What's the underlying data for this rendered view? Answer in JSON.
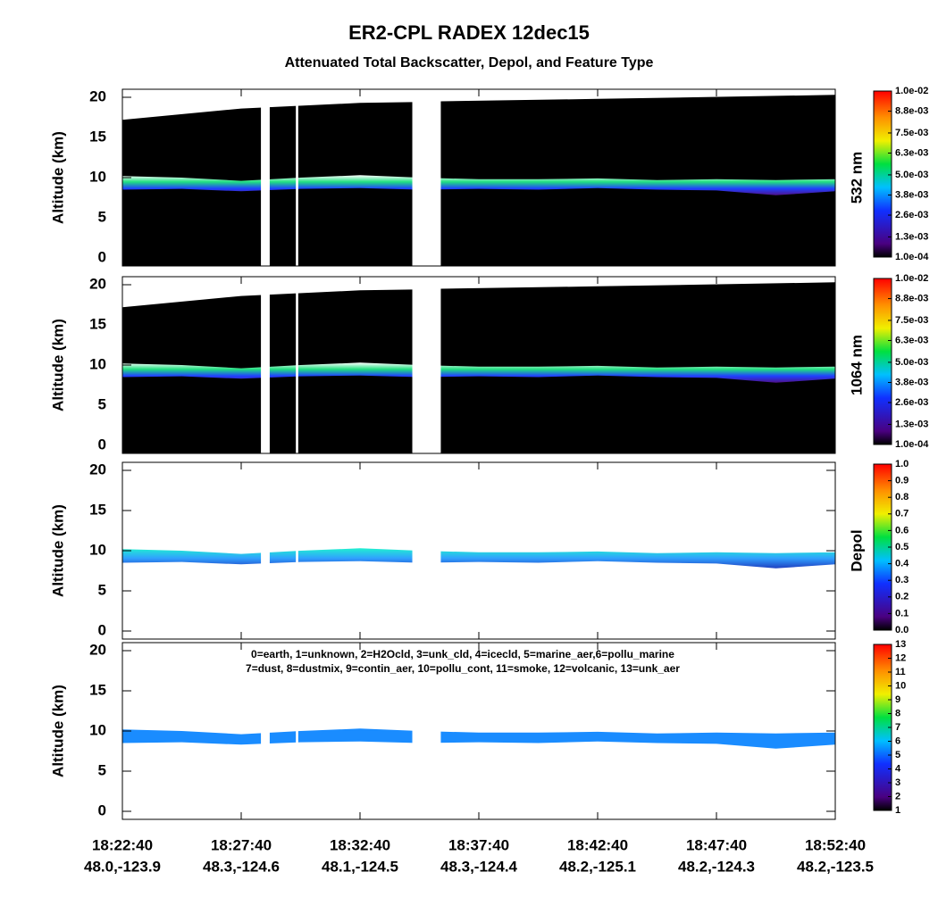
{
  "title": "ER2-CPL RADEX 12dec15",
  "subtitle": "Attenuated Total Backscatter, Depol, and Feature Type",
  "x_axis": {
    "xlim": [
      0,
      30
    ],
    "xticks": [
      {
        "value": 0,
        "label": "18:22:40"
      },
      {
        "value": 5,
        "label": "18:27:40"
      },
      {
        "value": 10,
        "label": "18:32:40"
      },
      {
        "value": 15,
        "label": "18:37:40"
      },
      {
        "value": 20,
        "label": "18:42:40"
      },
      {
        "value": 25,
        "label": "18:47:40"
      },
      {
        "value": 30,
        "label": "18:52:40"
      }
    ],
    "locations": [
      "48.0,-123.9",
      "48.3,-124.6",
      "48.1,-124.5",
      "48.3,-124.4",
      "48.2,-125.1",
      "48.2,-124.3",
      "48.2,-123.5"
    ]
  },
  "profile": {
    "x": [
      0,
      2.5,
      5,
      7.5,
      10,
      12.5,
      15,
      17.5,
      20,
      22.5,
      25,
      27.5,
      30
    ],
    "cloud_top": [
      10.2,
      10,
      9.6,
      10,
      10.3,
      10,
      9.8,
      9.8,
      9.9,
      9.7,
      9.8,
      9.7,
      9.8
    ],
    "cloud_base": [
      8.5,
      8.6,
      8.3,
      8.6,
      8.7,
      8.5,
      8.6,
      8.5,
      8.7,
      8.5,
      8.4,
      7.8,
      8.3
    ],
    "x_alt": [
      0,
      5,
      10,
      12.2,
      13.4,
      20,
      30
    ],
    "aircraft_alt": [
      17.2,
      18.6,
      19.3,
      19.4,
      19.5,
      19.8,
      20.3
    ],
    "gaps": [
      [
        5.83,
        6.2
      ],
      [
        7.3,
        7.4
      ],
      [
        12.2,
        13.4
      ]
    ]
  },
  "chart_data": [
    {
      "type": "curtain",
      "ylabel": "Altitude (km)",
      "side_label": "532 nm",
      "ylim": [
        -1,
        21
      ],
      "yticks": [
        0,
        5,
        10,
        15,
        20
      ],
      "background": "#000000",
      "band_colors": [
        "#ffffff",
        "#20e080",
        "#2040ff",
        "#50108a"
      ],
      "clim": [
        0.0001,
        0.01
      ],
      "cticks": [
        {
          "value": 0.0001,
          "label": "1.0e-04"
        },
        {
          "value": 0.0013,
          "label": "1.3e-03"
        },
        {
          "value": 0.0026,
          "label": "2.6e-03"
        },
        {
          "value": 0.0038,
          "label": "3.8e-03"
        },
        {
          "value": 0.005,
          "label": "5.0e-03"
        },
        {
          "value": 0.0063,
          "label": "6.3e-03"
        },
        {
          "value": 0.0075,
          "label": "7.5e-03"
        },
        {
          "value": 0.0088,
          "label": "8.8e-03"
        },
        {
          "value": 0.01,
          "label": "1.0e-02"
        }
      ]
    },
    {
      "type": "curtain",
      "ylabel": "Altitude (km)",
      "side_label": "1064 nm",
      "ylim": [
        -1,
        21
      ],
      "yticks": [
        0,
        5,
        10,
        15,
        20
      ],
      "background": "#000000",
      "band_colors": [
        "#ffffff",
        "#20e080",
        "#2040ff",
        "#50108a"
      ],
      "clim": [
        0.0001,
        0.01
      ],
      "cticks": [
        {
          "value": 0.0001,
          "label": "1.0e-04"
        },
        {
          "value": 0.0013,
          "label": "1.3e-03"
        },
        {
          "value": 0.0026,
          "label": "2.6e-03"
        },
        {
          "value": 0.0038,
          "label": "3.8e-03"
        },
        {
          "value": 0.005,
          "label": "5.0e-03"
        },
        {
          "value": 0.0063,
          "label": "6.3e-03"
        },
        {
          "value": 0.0075,
          "label": "7.5e-03"
        },
        {
          "value": 0.0088,
          "label": "8.8e-03"
        },
        {
          "value": 0.01,
          "label": "1.0e-02"
        }
      ]
    },
    {
      "type": "curtain",
      "ylabel": "Altitude (km)",
      "side_label": "Depol",
      "ylim": [
        -1,
        21
      ],
      "yticks": [
        0,
        5,
        10,
        15,
        20
      ],
      "background": null,
      "band_colors": [
        "#20f0d0",
        "#30a0ff",
        "#2040c0"
      ],
      "clim": [
        0,
        1
      ],
      "cticks": [
        {
          "value": 0,
          "label": "0.0"
        },
        0.1,
        0.2,
        0.3,
        0.4,
        0.5,
        0.6,
        0.7,
        0.8,
        0.9,
        {
          "value": 1,
          "label": "1.0"
        }
      ]
    },
    {
      "type": "curtain",
      "ylabel": "Altitude (km)",
      "ylim": [
        -1,
        21
      ],
      "yticks": [
        0,
        5,
        10,
        15,
        20
      ],
      "background": null,
      "band_colors": [
        "#1a8cff"
      ],
      "clim": [
        1,
        13
      ],
      "cticks": [
        1,
        2,
        3,
        4,
        5,
        6,
        7,
        8,
        9,
        10,
        11,
        12,
        13
      ],
      "annotations": [
        "0=earth, 1=unknown, 2=H2Ocld, 3=unk_cld, 4=icecld, 5=marine_aer,6=pollu_marine",
        "7=dust, 8=dustmix, 9=contin_aer, 10=pollu_cont, 11=smoke, 12=volcanic, 13=unk_aer"
      ]
    }
  ]
}
